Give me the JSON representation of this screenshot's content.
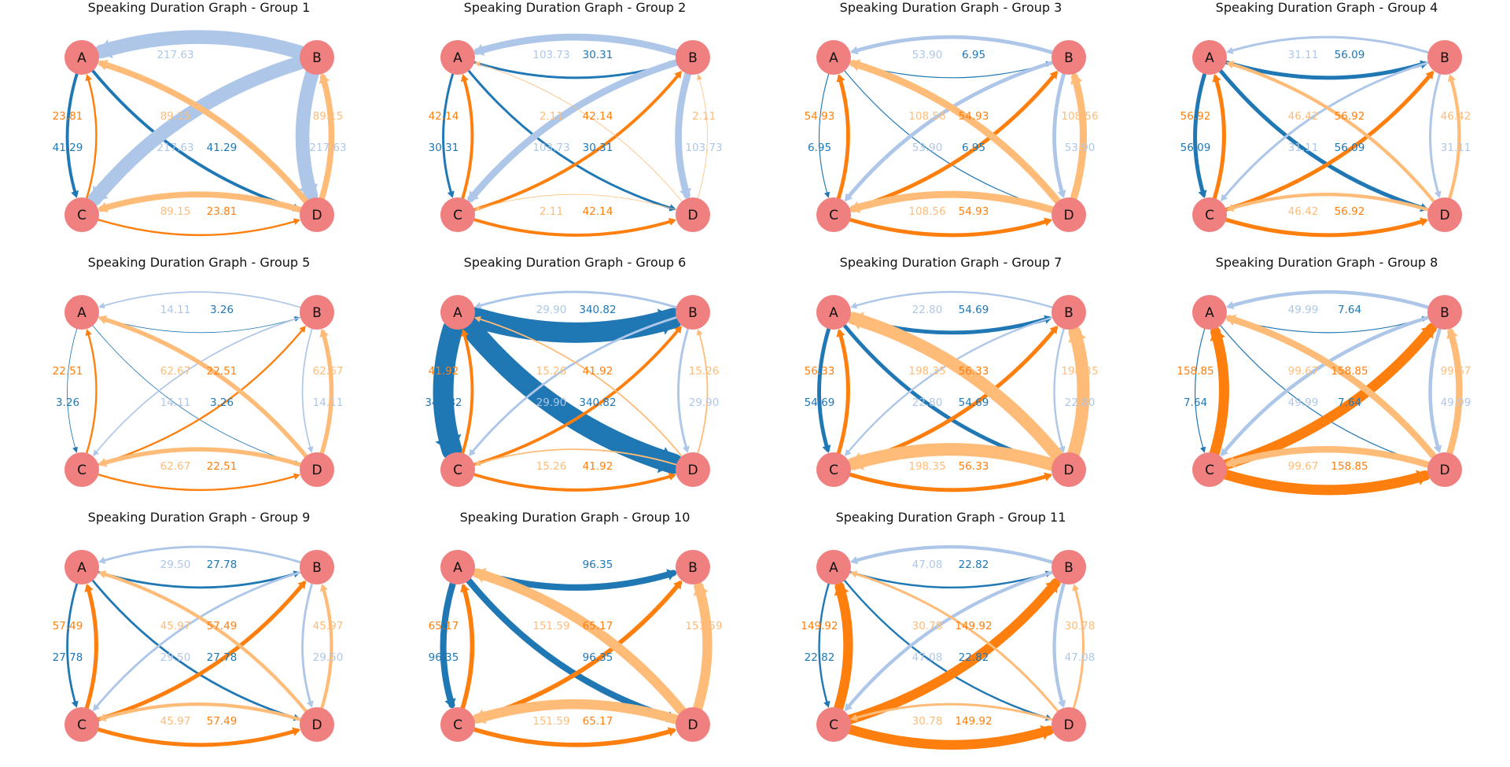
{
  "figure": {
    "node_color": "#f08080",
    "edge_colors": {
      "A": "#1f77b4",
      "B": "#aec7e8",
      "C": "#ff7f0e",
      "D": "#ffbb78"
    },
    "groups": [
      {
        "title": "Speaking Duration Graph - Group 1",
        "nodes": [
          "A",
          "B",
          "C",
          "D"
        ],
        "edges": [
          {
            "from": "A",
            "to": "C",
            "label": "41.29"
          },
          {
            "from": "A",
            "to": "D",
            "label": "41.29"
          },
          {
            "from": "B",
            "to": "A",
            "label": "217.63"
          },
          {
            "from": "B",
            "to": "C",
            "label": "217.63"
          },
          {
            "from": "B",
            "to": "D",
            "label": "217.63"
          },
          {
            "from": "C",
            "to": "D",
            "label": "23.81"
          },
          {
            "from": "C",
            "to": "A",
            "label": "23.81"
          },
          {
            "from": "D",
            "to": "C",
            "label": "89.15"
          },
          {
            "from": "D",
            "to": "A",
            "label": "89.15"
          },
          {
            "from": "D",
            "to": "B",
            "label": "89.15"
          }
        ]
      },
      {
        "title": "Speaking Duration Graph - Group 2",
        "nodes": [
          "A",
          "B",
          "C",
          "D"
        ],
        "edges": [
          {
            "from": "A",
            "to": "C",
            "label": "30.31"
          },
          {
            "from": "A",
            "to": "D",
            "label": "30.31"
          },
          {
            "from": "A",
            "to": "B",
            "label": "30.31"
          },
          {
            "from": "B",
            "to": "A",
            "label": "103.73"
          },
          {
            "from": "B",
            "to": "C",
            "label": "103.73"
          },
          {
            "from": "B",
            "to": "D",
            "label": "103.73"
          },
          {
            "from": "C",
            "to": "D",
            "label": "42.14"
          },
          {
            "from": "C",
            "to": "A",
            "label": "42.14"
          },
          {
            "from": "C",
            "to": "B",
            "label": "42.14"
          },
          {
            "from": "D",
            "to": "C",
            "label": "2.11"
          },
          {
            "from": "D",
            "to": "A",
            "label": "2.11"
          },
          {
            "from": "D",
            "to": "B",
            "label": "2.11"
          }
        ]
      },
      {
        "title": "Speaking Duration Graph - Group 3",
        "nodes": [
          "A",
          "B",
          "C",
          "D"
        ],
        "edges": [
          {
            "from": "A",
            "to": "C",
            "label": "6.95"
          },
          {
            "from": "A",
            "to": "D",
            "label": "6.95"
          },
          {
            "from": "A",
            "to": "B",
            "label": "6.95"
          },
          {
            "from": "B",
            "to": "A",
            "label": "53.90"
          },
          {
            "from": "B",
            "to": "C",
            "label": "53.90"
          },
          {
            "from": "B",
            "to": "D",
            "label": "53.90"
          },
          {
            "from": "C",
            "to": "D",
            "label": "54.93"
          },
          {
            "from": "C",
            "to": "A",
            "label": "54.93"
          },
          {
            "from": "C",
            "to": "B",
            "label": "54.93"
          },
          {
            "from": "D",
            "to": "C",
            "label": "108.56"
          },
          {
            "from": "D",
            "to": "A",
            "label": "108.56"
          },
          {
            "from": "D",
            "to": "B",
            "label": "108.56"
          }
        ]
      },
      {
        "title": "Speaking Duration Graph - Group 4",
        "nodes": [
          "A",
          "B",
          "C",
          "D"
        ],
        "edges": [
          {
            "from": "A",
            "to": "C",
            "label": "56.09"
          },
          {
            "from": "A",
            "to": "D",
            "label": "56.09"
          },
          {
            "from": "A",
            "to": "B",
            "label": "56.09"
          },
          {
            "from": "B",
            "to": "A",
            "label": "31.11"
          },
          {
            "from": "B",
            "to": "C",
            "label": "31.11"
          },
          {
            "from": "B",
            "to": "D",
            "label": "31.11"
          },
          {
            "from": "C",
            "to": "D",
            "label": "56.92"
          },
          {
            "from": "C",
            "to": "A",
            "label": "56.92"
          },
          {
            "from": "C",
            "to": "B",
            "label": "56.92"
          },
          {
            "from": "D",
            "to": "C",
            "label": "46.42"
          },
          {
            "from": "D",
            "to": "A",
            "label": "46.42"
          },
          {
            "from": "D",
            "to": "B",
            "label": "46.42"
          }
        ]
      },
      {
        "title": "Speaking Duration Graph - Group 5",
        "nodes": [
          "A",
          "B",
          "C",
          "D"
        ],
        "edges": [
          {
            "from": "A",
            "to": "C",
            "label": "3.26"
          },
          {
            "from": "A",
            "to": "D",
            "label": "3.26"
          },
          {
            "from": "A",
            "to": "B",
            "label": "3.26"
          },
          {
            "from": "B",
            "to": "A",
            "label": "14.11"
          },
          {
            "from": "B",
            "to": "C",
            "label": "14.11"
          },
          {
            "from": "B",
            "to": "D",
            "label": "14.11"
          },
          {
            "from": "C",
            "to": "D",
            "label": "22.51"
          },
          {
            "from": "C",
            "to": "A",
            "label": "22.51"
          },
          {
            "from": "C",
            "to": "B",
            "label": "22.51"
          },
          {
            "from": "D",
            "to": "C",
            "label": "62.67"
          },
          {
            "from": "D",
            "to": "A",
            "label": "62.67"
          },
          {
            "from": "D",
            "to": "B",
            "label": "62.67"
          }
        ]
      },
      {
        "title": "Speaking Duration Graph - Group 6",
        "nodes": [
          "A",
          "B",
          "C",
          "D"
        ],
        "edges": [
          {
            "from": "A",
            "to": "C",
            "label": "340.82"
          },
          {
            "from": "A",
            "to": "D",
            "label": "340.82"
          },
          {
            "from": "A",
            "to": "B",
            "label": "340.82"
          },
          {
            "from": "B",
            "to": "A",
            "label": "29.90"
          },
          {
            "from": "B",
            "to": "C",
            "label": "29.90"
          },
          {
            "from": "B",
            "to": "D",
            "label": "29.90"
          },
          {
            "from": "C",
            "to": "D",
            "label": "41.92"
          },
          {
            "from": "C",
            "to": "A",
            "label": "41.92"
          },
          {
            "from": "C",
            "to": "B",
            "label": "41.92"
          },
          {
            "from": "D",
            "to": "C",
            "label": "15.26"
          },
          {
            "from": "D",
            "to": "A",
            "label": "15.26"
          },
          {
            "from": "D",
            "to": "B",
            "label": "15.26"
          }
        ]
      },
      {
        "title": "Speaking Duration Graph - Group 7",
        "nodes": [
          "A",
          "B",
          "C",
          "D"
        ],
        "edges": [
          {
            "from": "A",
            "to": "C",
            "label": "54.69"
          },
          {
            "from": "A",
            "to": "D",
            "label": "54.69"
          },
          {
            "from": "A",
            "to": "B",
            "label": "54.69"
          },
          {
            "from": "B",
            "to": "A",
            "label": "22.80"
          },
          {
            "from": "B",
            "to": "C",
            "label": "22.80"
          },
          {
            "from": "B",
            "to": "D",
            "label": "22.80"
          },
          {
            "from": "C",
            "to": "D",
            "label": "56.33"
          },
          {
            "from": "C",
            "to": "A",
            "label": "56.33"
          },
          {
            "from": "C",
            "to": "B",
            "label": "56.33"
          },
          {
            "from": "D",
            "to": "C",
            "label": "198.35"
          },
          {
            "from": "D",
            "to": "A",
            "label": "198.35"
          },
          {
            "from": "D",
            "to": "B",
            "label": "198.35"
          }
        ]
      },
      {
        "title": "Speaking Duration Graph - Group 8",
        "nodes": [
          "A",
          "B",
          "C",
          "D"
        ],
        "edges": [
          {
            "from": "A",
            "to": "C",
            "label": "7.64"
          },
          {
            "from": "A",
            "to": "D",
            "label": "7.64"
          },
          {
            "from": "A",
            "to": "B",
            "label": "7.64"
          },
          {
            "from": "B",
            "to": "A",
            "label": "49.99"
          },
          {
            "from": "B",
            "to": "C",
            "label": "49.99"
          },
          {
            "from": "B",
            "to": "D",
            "label": "49.99"
          },
          {
            "from": "C",
            "to": "D",
            "label": "158.85"
          },
          {
            "from": "C",
            "to": "A",
            "label": "158.85"
          },
          {
            "from": "C",
            "to": "B",
            "label": "158.85"
          },
          {
            "from": "D",
            "to": "C",
            "label": "99.67"
          },
          {
            "from": "D",
            "to": "A",
            "label": "99.67"
          },
          {
            "from": "D",
            "to": "B",
            "label": "99.67"
          }
        ]
      },
      {
        "title": "Speaking Duration Graph - Group 9",
        "nodes": [
          "A",
          "B",
          "C",
          "D"
        ],
        "edges": [
          {
            "from": "A",
            "to": "C",
            "label": "27.78"
          },
          {
            "from": "A",
            "to": "D",
            "label": "27.78"
          },
          {
            "from": "A",
            "to": "B",
            "label": "27.78"
          },
          {
            "from": "B",
            "to": "A",
            "label": "29.50"
          },
          {
            "from": "B",
            "to": "C",
            "label": "29.50"
          },
          {
            "from": "B",
            "to": "D",
            "label": "29.50"
          },
          {
            "from": "C",
            "to": "D",
            "label": "57.49"
          },
          {
            "from": "C",
            "to": "A",
            "label": "57.49"
          },
          {
            "from": "C",
            "to": "B",
            "label": "57.49"
          },
          {
            "from": "D",
            "to": "C",
            "label": "45.97"
          },
          {
            "from": "D",
            "to": "A",
            "label": "45.97"
          },
          {
            "from": "D",
            "to": "B",
            "label": "45.97"
          }
        ]
      },
      {
        "title": "Speaking Duration Graph - Group 10",
        "nodes": [
          "A",
          "B",
          "C",
          "D"
        ],
        "edges": [
          {
            "from": "A",
            "to": "C",
            "label": "96.35"
          },
          {
            "from": "A",
            "to": "D",
            "label": "96.35"
          },
          {
            "from": "A",
            "to": "B",
            "label": "96.35"
          },
          {
            "from": "C",
            "to": "D",
            "label": "65.17"
          },
          {
            "from": "C",
            "to": "A",
            "label": "65.17"
          },
          {
            "from": "C",
            "to": "B",
            "label": "65.17"
          },
          {
            "from": "D",
            "to": "C",
            "label": "151.59"
          },
          {
            "from": "D",
            "to": "A",
            "label": "151.59"
          },
          {
            "from": "D",
            "to": "B",
            "label": "151.59"
          }
        ]
      },
      {
        "title": "Speaking Duration Graph - Group 11",
        "nodes": [
          "A",
          "B",
          "C",
          "D"
        ],
        "edges": [
          {
            "from": "A",
            "to": "C",
            "label": "22.82"
          },
          {
            "from": "A",
            "to": "D",
            "label": "22.82"
          },
          {
            "from": "A",
            "to": "B",
            "label": "22.82"
          },
          {
            "from": "B",
            "to": "A",
            "label": "47.08"
          },
          {
            "from": "B",
            "to": "C",
            "label": "47.08"
          },
          {
            "from": "B",
            "to": "D",
            "label": "47.08"
          },
          {
            "from": "C",
            "to": "D",
            "label": "149.92"
          },
          {
            "from": "C",
            "to": "A",
            "label": "149.92"
          },
          {
            "from": "C",
            "to": "B",
            "label": "149.92"
          },
          {
            "from": "D",
            "to": "C",
            "label": "30.78"
          },
          {
            "from": "D",
            "to": "A",
            "label": "30.78"
          },
          {
            "from": "D",
            "to": "B",
            "label": "30.78"
          }
        ]
      }
    ]
  }
}
